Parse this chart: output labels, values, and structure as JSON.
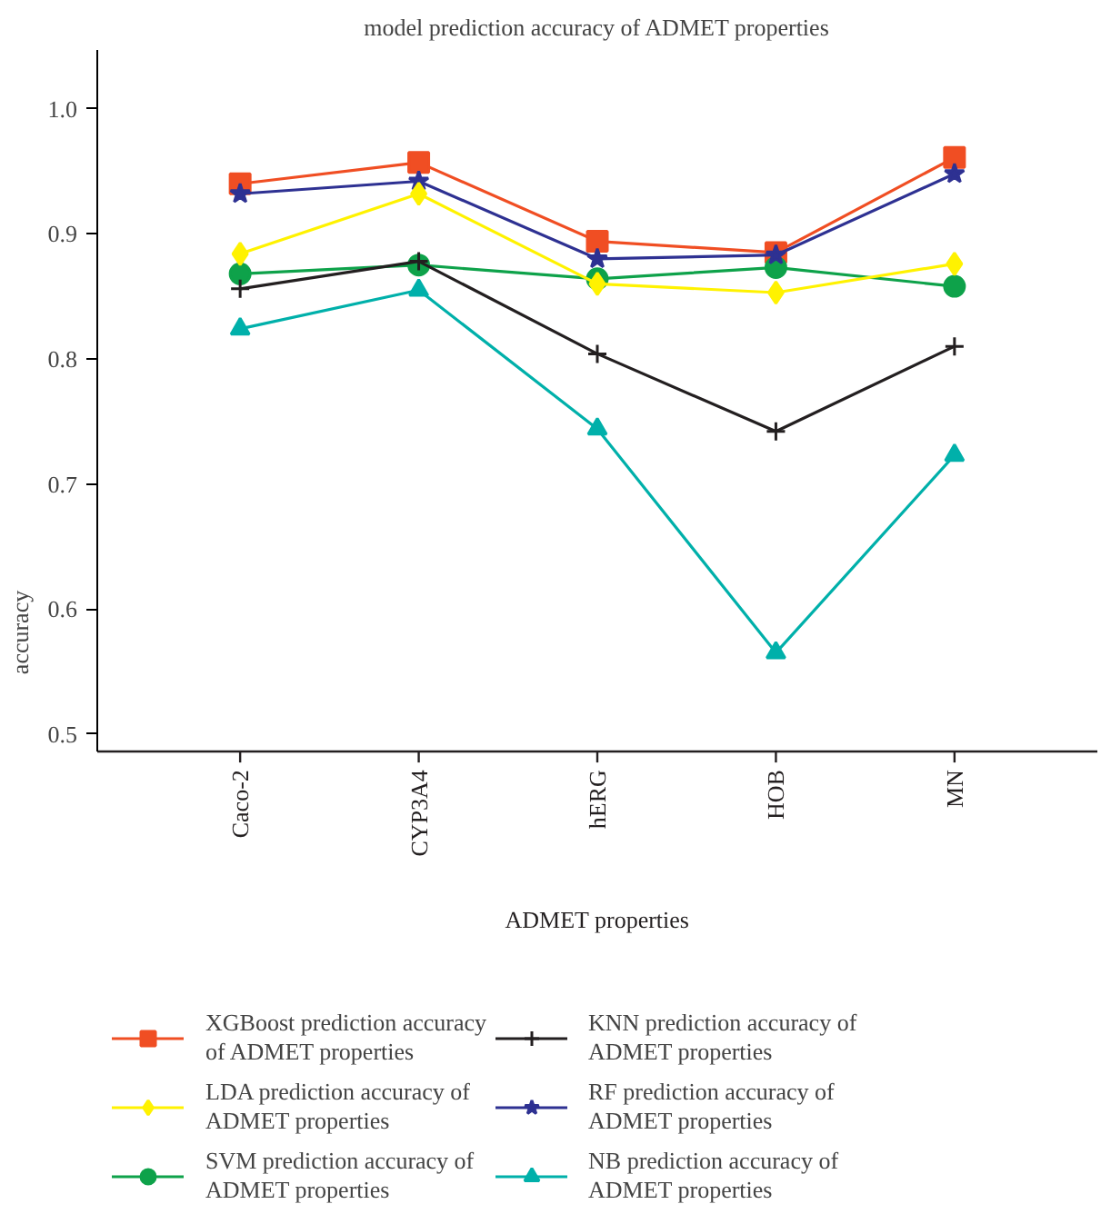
{
  "chart_data": {
    "type": "line",
    "title": "model prediction accuracy of ADMET properties",
    "xlabel": "ADMET properties",
    "ylabel": "accuracy",
    "categories": [
      "Caco-2",
      "CYP3A4",
      "hERG",
      "HOB",
      "MN"
    ],
    "ylim": [
      0.486,
      1.047
    ],
    "yticks": [
      {
        "value": 0.5,
        "label": "0.5"
      },
      {
        "value": 0.6,
        "label": "0.6"
      },
      {
        "value": 0.7,
        "label": "0.7"
      },
      {
        "value": 0.8,
        "label": "0.8"
      },
      {
        "value": 0.9,
        "label": "0.9"
      },
      {
        "value": 1.0,
        "label": "1.0"
      }
    ],
    "grid": false,
    "legend": "bottom",
    "line_style": "solid",
    "series": [
      {
        "name": "XGBoost prediction accuracy of ADMET properties",
        "color": "#f04e23",
        "marker": "square",
        "values": [
          0.94,
          0.957,
          0.894,
          0.885,
          0.961
        ]
      },
      {
        "name": "SVM prediction accuracy of ADMET properties",
        "color": "#0ea24a",
        "marker": "circle",
        "values": [
          0.868,
          0.875,
          0.864,
          0.873,
          0.858
        ]
      },
      {
        "name": "RF prediction accuracy of ADMET properties",
        "color": "#2e3192",
        "marker": "star",
        "values": [
          0.932,
          0.942,
          0.88,
          0.883,
          0.948
        ]
      },
      {
        "name": "LDA prediction accuracy of ADMET properties",
        "color": "#fff200",
        "marker": "diamond",
        "values": [
          0.884,
          0.932,
          0.86,
          0.853,
          0.876
        ]
      },
      {
        "name": "KNN prediction accuracy of ADMET properties",
        "color": "#231f20",
        "marker": "cross",
        "values": [
          0.856,
          0.878,
          0.804,
          0.742,
          0.81
        ]
      },
      {
        "name": "NB prediction accuracy of ADMET properties",
        "color": "#00b0aa",
        "marker": "triangle",
        "values": [
          0.824,
          0.855,
          0.744,
          0.565,
          0.723
        ]
      }
    ]
  }
}
